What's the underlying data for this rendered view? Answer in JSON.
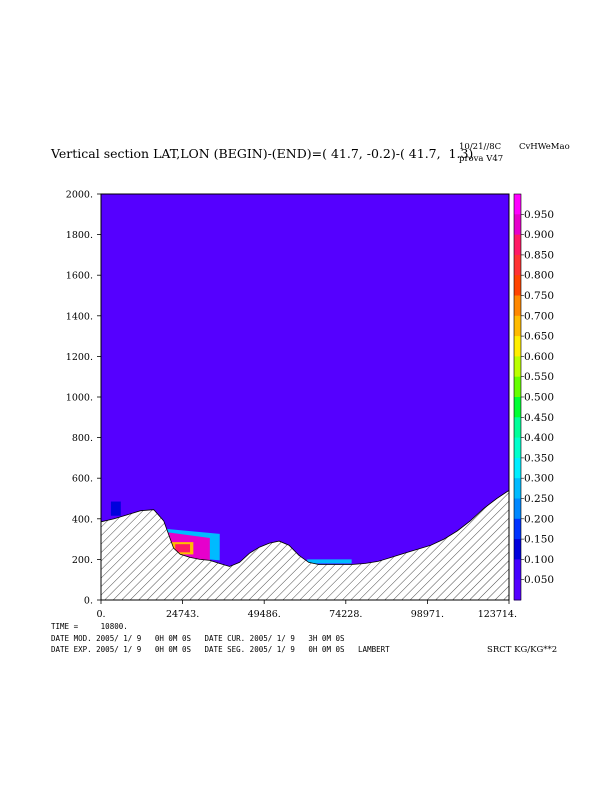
{
  "header": {
    "title": "Vertical section LAT,LON (BEGIN)-(END)=( 41.7, -0.2)-( 41.7,  1.3)",
    "date_code": "10/21//8C",
    "run_name": "prova V47",
    "model_code": "CvHWeMao"
  },
  "chart_data": {
    "type": "heatmap",
    "title": "Vertical section LAT,LON (BEGIN)-(END)=( 41.7, -0.2)-( 41.7,  1.3)",
    "xlabel": "",
    "ylabel": "",
    "xlim": [
      0,
      123714
    ],
    "ylim": [
      0,
      2000
    ],
    "x_ticks": [
      0,
      24743,
      49486,
      74228,
      98971,
      123714
    ],
    "x_tick_labels": [
      "0.",
      "24743.",
      "49486.",
      "74228.",
      "98971.",
      "123714."
    ],
    "y_ticks": [
      0,
      200,
      400,
      600,
      800,
      1000,
      1200,
      1400,
      1600,
      1800,
      2000
    ],
    "y_tick_labels": [
      "0.",
      "200.",
      "400.",
      "600.",
      "800.",
      "1000.",
      "1200.",
      "1400.",
      "1600.",
      "1800.",
      "2000."
    ],
    "background_field_value": 0.0,
    "background_color": "#5500ff",
    "colorbar": {
      "units": "SRCT KG/KG**2",
      "labels": [
        "0.950",
        "0.900",
        "0.850",
        "0.800",
        "0.750",
        "0.700",
        "0.650",
        "0.600",
        "0.550",
        "0.500",
        "0.450",
        "0.400",
        "0.350",
        "0.300",
        "0.250",
        "0.200",
        "0.150",
        "0.100",
        "0.050"
      ],
      "colors": [
        "#ff00ff",
        "#e600cc",
        "#ff1a66",
        "#ff3333",
        "#ff4400",
        "#ff8800",
        "#ffbb00",
        "#ffee00",
        "#bbff00",
        "#66ff00",
        "#00ff33",
        "#00ff99",
        "#00ffcc",
        "#00eeff",
        "#00bbff",
        "#0088ff",
        "#0033ff",
        "#0000dd",
        "#4400ff",
        "#5500ff"
      ]
    },
    "terrain_profile": {
      "x": [
        0,
        4000,
        8000,
        12000,
        16000,
        19000,
        21000,
        22000,
        24000,
        27000,
        30000,
        33000,
        36000,
        39000,
        42000,
        45000,
        48000,
        51000,
        54000,
        57000,
        60000,
        63000,
        66000,
        68000,
        72000,
        76000,
        80000,
        84000,
        88000,
        92000,
        96000,
        100000,
        104000,
        108000,
        112000,
        116000,
        120000,
        123714
      ],
      "y": [
        385,
        400,
        420,
        440,
        445,
        390,
        300,
        255,
        225,
        210,
        200,
        195,
        180,
        165,
        185,
        230,
        260,
        280,
        290,
        270,
        220,
        185,
        175,
        175,
        175,
        175,
        180,
        190,
        210,
        230,
        250,
        270,
        300,
        340,
        390,
        450,
        500,
        540
      ]
    },
    "field_patches": [
      {
        "level": 0.15,
        "x": [
          3000,
          6000
        ],
        "y": [
          415,
          485
        ]
      },
      {
        "level": 0.25,
        "x": [
          16500,
          36000
        ],
        "y": [
          225,
          355
        ]
      },
      {
        "level": 0.9,
        "x": [
          19500,
          33000
        ],
        "y": [
          205,
          335
        ]
      },
      {
        "level": 0.7,
        "x": [
          21500,
          28000
        ],
        "y": [
          225,
          285
        ]
      },
      {
        "level": 0.85,
        "x": [
          22500,
          27000
        ],
        "y": [
          235,
          275
        ]
      },
      {
        "level": 0.3,
        "x": [
          62500,
          76000
        ],
        "y": [
          180,
          200
        ]
      }
    ]
  },
  "footer": {
    "time_line": "TIME =     10800.",
    "line1": "DATE MOD. 2005/ 1/ 9   0H 0M 0S   DATE CUR. 2005/ 1/ 9   3H 0M 0S",
    "line2": "DATE EXP. 2005/ 1/ 9   0H 0M 0S   DATE SEG. 2005/ 1/ 9   0H 0M 0S   LAMBERT",
    "units_label": "SRCT KG/KG**2"
  }
}
